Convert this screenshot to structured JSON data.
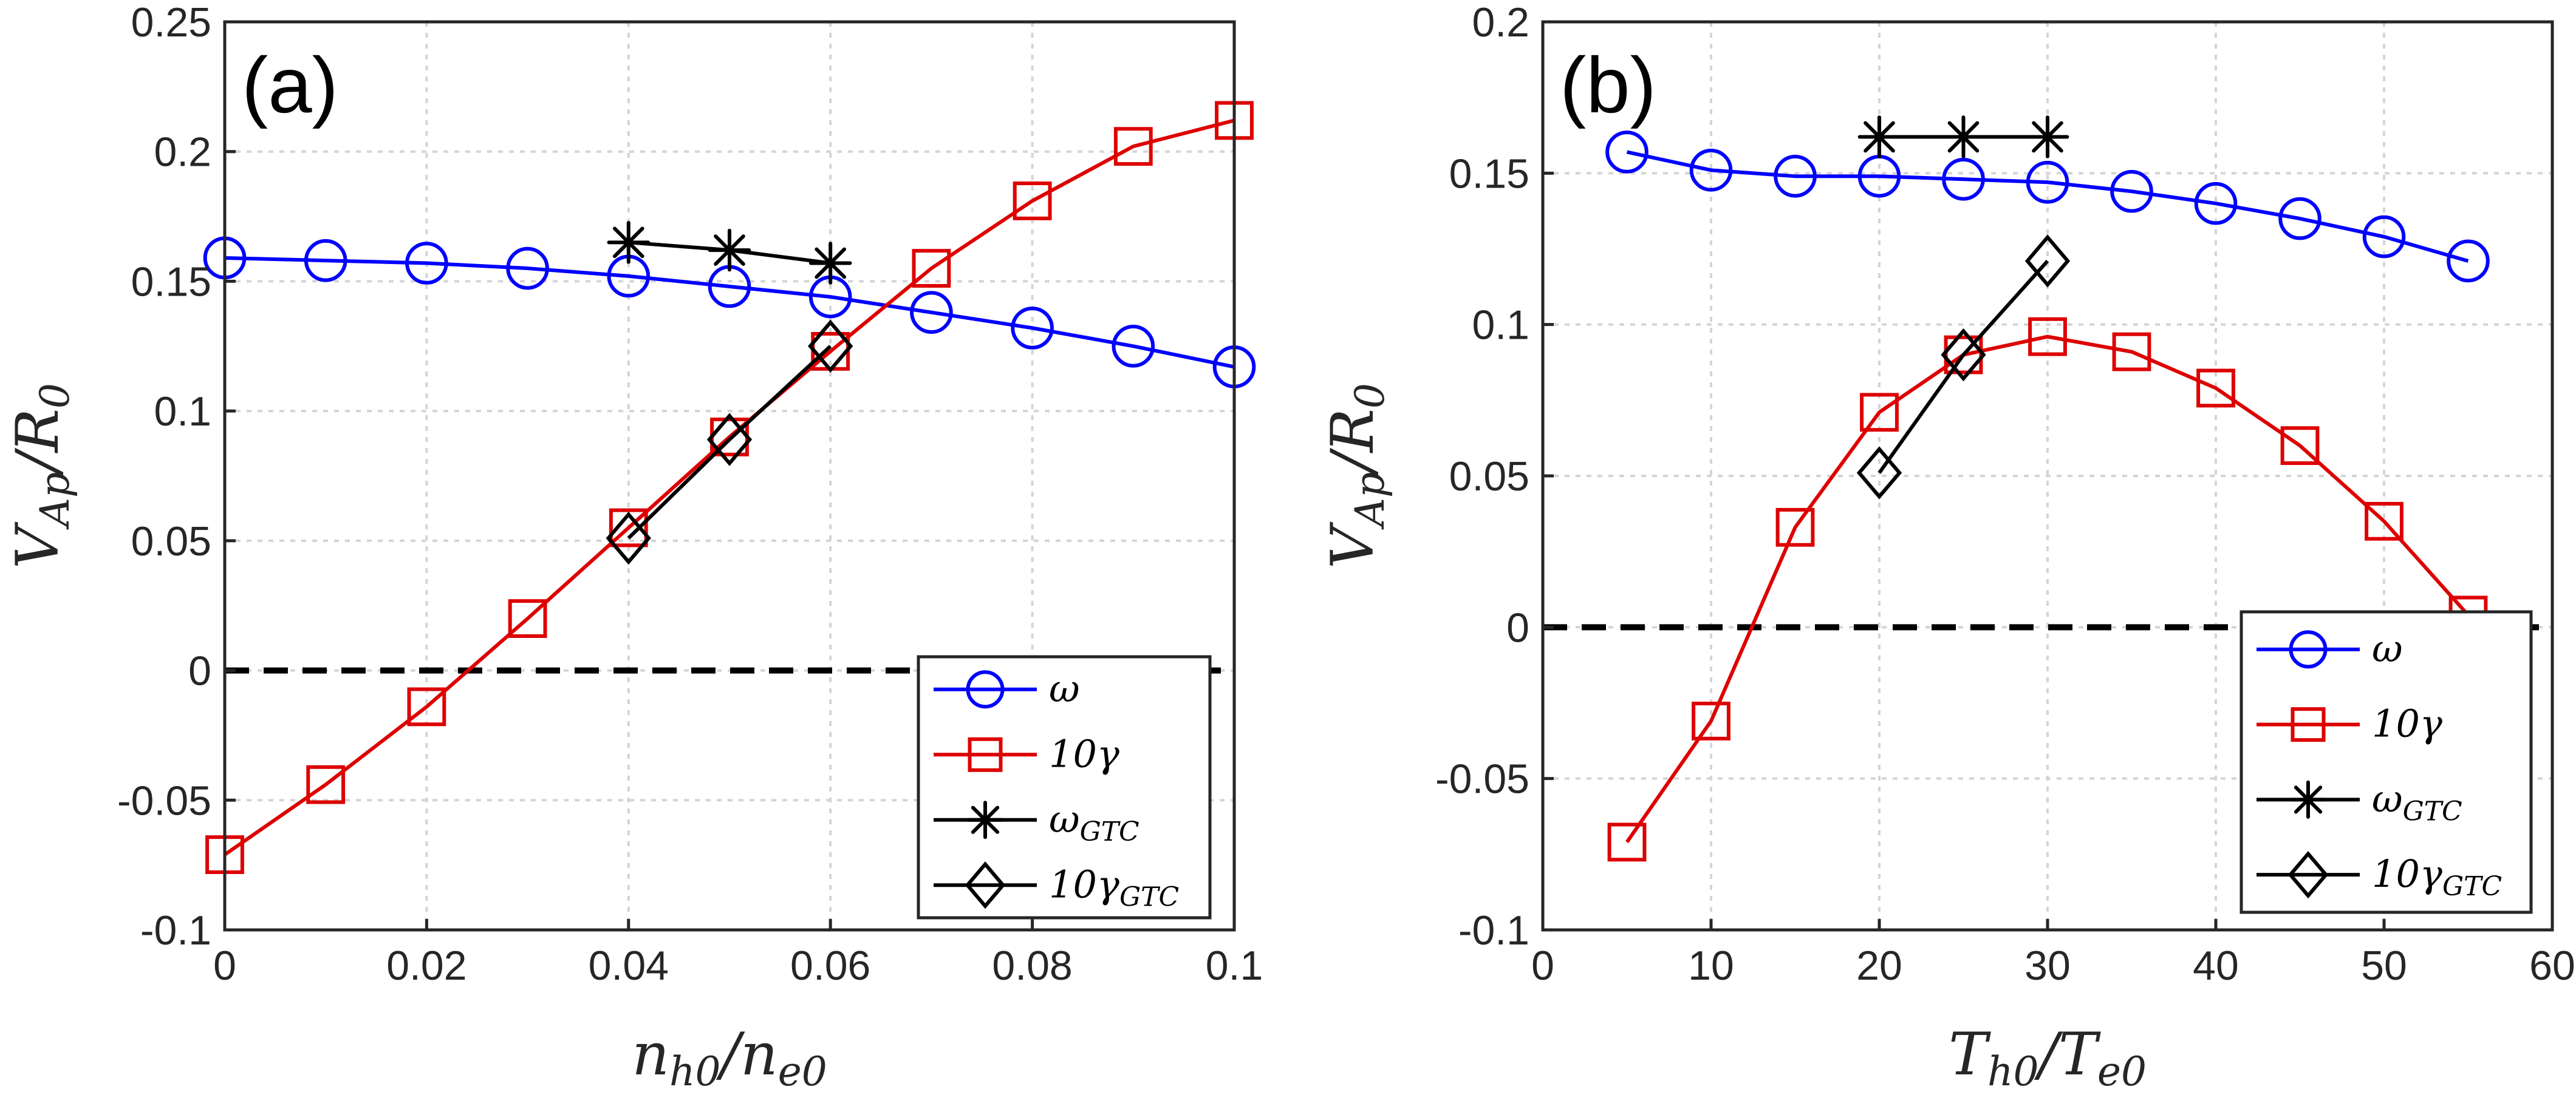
{
  "chart_data": [
    {
      "type": "line",
      "panel_label": "(a)",
      "xlabel": {
        "main": "n",
        "sub1": "h0",
        "sep": "/n",
        "sub2": "e0"
      },
      "ylabel": {
        "main": "V",
        "sub1": "Ap",
        "sep": "/R",
        "sub2": "0"
      },
      "xlim": [
        0,
        0.1
      ],
      "ylim": [
        -0.1,
        0.25
      ],
      "xticks": [
        0,
        0.02,
        0.04,
        0.06,
        0.08,
        0.1
      ],
      "xtick_labels": [
        "0",
        "0.02",
        "0.04",
        "0.06",
        "0.08",
        "0.1"
      ],
      "yticks": [
        -0.1,
        -0.05,
        0,
        0.05,
        0.1,
        0.15,
        0.2,
        0.25
      ],
      "ytick_labels": [
        "-0.1",
        "-0.05",
        "0",
        "0.05",
        "0.1",
        "0.15",
        "0.2",
        "0.25"
      ],
      "grid": true,
      "legend_position": "bottom-right",
      "reference_line": {
        "y": 0,
        "style": "dashed",
        "color": "#000000"
      },
      "series": [
        {
          "name": "omega",
          "legend": {
            "main": "ω",
            "sub": ""
          },
          "color": "#0000ff",
          "marker": "circle",
          "x": [
            0,
            0.01,
            0.02,
            0.03,
            0.04,
            0.05,
            0.06,
            0.07,
            0.08,
            0.09,
            0.1
          ],
          "y": [
            0.159,
            0.158,
            0.157,
            0.155,
            0.152,
            0.148,
            0.144,
            0.138,
            0.132,
            0.125,
            0.117
          ]
        },
        {
          "name": "10gamma",
          "legend": {
            "main": "10γ",
            "sub": ""
          },
          "color": "#dd0000",
          "marker": "square",
          "x": [
            0,
            0.01,
            0.02,
            0.03,
            0.04,
            0.05,
            0.06,
            0.07,
            0.08,
            0.09,
            0.1
          ],
          "y": [
            -0.071,
            -0.044,
            -0.014,
            0.02,
            0.055,
            0.09,
            0.123,
            0.155,
            0.181,
            0.202,
            0.212
          ]
        },
        {
          "name": "omega_GTC",
          "legend": {
            "main": "ω",
            "sub": "GTC"
          },
          "color": "#000000",
          "marker": "asterisk",
          "x": [
            0.04,
            0.05,
            0.06
          ],
          "y": [
            0.165,
            0.162,
            0.157
          ]
        },
        {
          "name": "10gamma_GTC",
          "legend": {
            "main": "10γ",
            "sub": "GTC"
          },
          "color": "#000000",
          "marker": "diamond",
          "x": [
            0.04,
            0.05,
            0.06
          ],
          "y": [
            0.051,
            0.089,
            0.125
          ]
        }
      ]
    },
    {
      "type": "line",
      "panel_label": "(b)",
      "xlabel": {
        "main": "T",
        "sub1": "h0",
        "sep": "/T",
        "sub2": "e0"
      },
      "ylabel": {
        "main": "V",
        "sub1": "Ap",
        "sep": "/R",
        "sub2": "0"
      },
      "xlim": [
        0,
        60
      ],
      "ylim": [
        -0.1,
        0.2
      ],
      "xticks": [
        0,
        10,
        20,
        30,
        40,
        50,
        60
      ],
      "xtick_labels": [
        "0",
        "10",
        "20",
        "30",
        "40",
        "50",
        "60"
      ],
      "yticks": [
        -0.1,
        -0.05,
        0,
        0.05,
        0.1,
        0.15,
        0.2
      ],
      "ytick_labels": [
        "-0.1",
        "-0.05",
        "0",
        "0.05",
        "0.1",
        "0.15",
        "0.2"
      ],
      "grid": true,
      "legend_position": "bottom-right",
      "reference_line": {
        "y": 0,
        "style": "dashed",
        "color": "#000000"
      },
      "series": [
        {
          "name": "omega",
          "legend": {
            "main": "ω",
            "sub": ""
          },
          "color": "#0000ff",
          "marker": "circle",
          "x": [
            5,
            10,
            15,
            20,
            25,
            30,
            35,
            40,
            45,
            50,
            55
          ],
          "y": [
            0.157,
            0.151,
            0.149,
            0.149,
            0.148,
            0.147,
            0.144,
            0.14,
            0.135,
            0.129,
            0.121
          ]
        },
        {
          "name": "10gamma",
          "legend": {
            "main": "10γ",
            "sub": ""
          },
          "color": "#dd0000",
          "marker": "square",
          "x": [
            5,
            10,
            15,
            20,
            25,
            30,
            35,
            40,
            45,
            50,
            55
          ],
          "y": [
            -0.071,
            -0.031,
            0.033,
            0.071,
            0.09,
            0.096,
            0.091,
            0.079,
            0.06,
            0.035,
            0.004
          ]
        },
        {
          "name": "omega_GTC",
          "legend": {
            "main": "ω",
            "sub": "GTC"
          },
          "color": "#000000",
          "marker": "asterisk",
          "x": [
            20,
            25,
            30
          ],
          "y": [
            0.162,
            0.162,
            0.162
          ]
        },
        {
          "name": "10gamma_GTC",
          "legend": {
            "main": "10γ",
            "sub": "GTC"
          },
          "color": "#000000",
          "marker": "diamond",
          "x": [
            20,
            25,
            30
          ],
          "y": [
            0.051,
            0.09,
            0.121
          ]
        }
      ]
    }
  ]
}
